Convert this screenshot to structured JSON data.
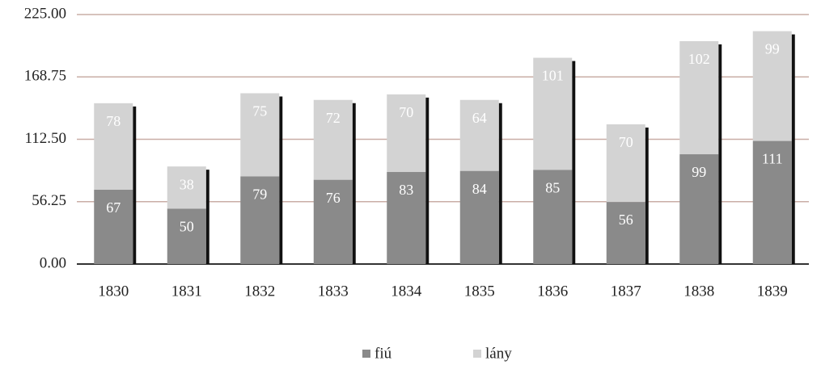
{
  "chart_data": {
    "type": "stacked_bar",
    "categories": [
      "1830",
      "1831",
      "1832",
      "1833",
      "1834",
      "1835",
      "1836",
      "1837",
      "1838",
      "1839"
    ],
    "series": [
      {
        "name": "fiú",
        "color": "#8a8a8a",
        "values": [
          67,
          50,
          79,
          76,
          83,
          84,
          85,
          56,
          99,
          111
        ]
      },
      {
        "name": "lány",
        "color": "#d3d3d3",
        "values": [
          78,
          38,
          75,
          72,
          70,
          64,
          101,
          70,
          102,
          99
        ]
      }
    ],
    "ylim": [
      0,
      225
    ],
    "yticks": [
      {
        "value": 0,
        "label": "0.00"
      },
      {
        "value": 56.25,
        "label": "56.25"
      },
      {
        "value": 112.5,
        "label": "112.50"
      },
      {
        "value": 168.75,
        "label": "168.75"
      },
      {
        "value": 225,
        "label": "225.00"
      }
    ],
    "grid": true,
    "legend": "bottom"
  }
}
